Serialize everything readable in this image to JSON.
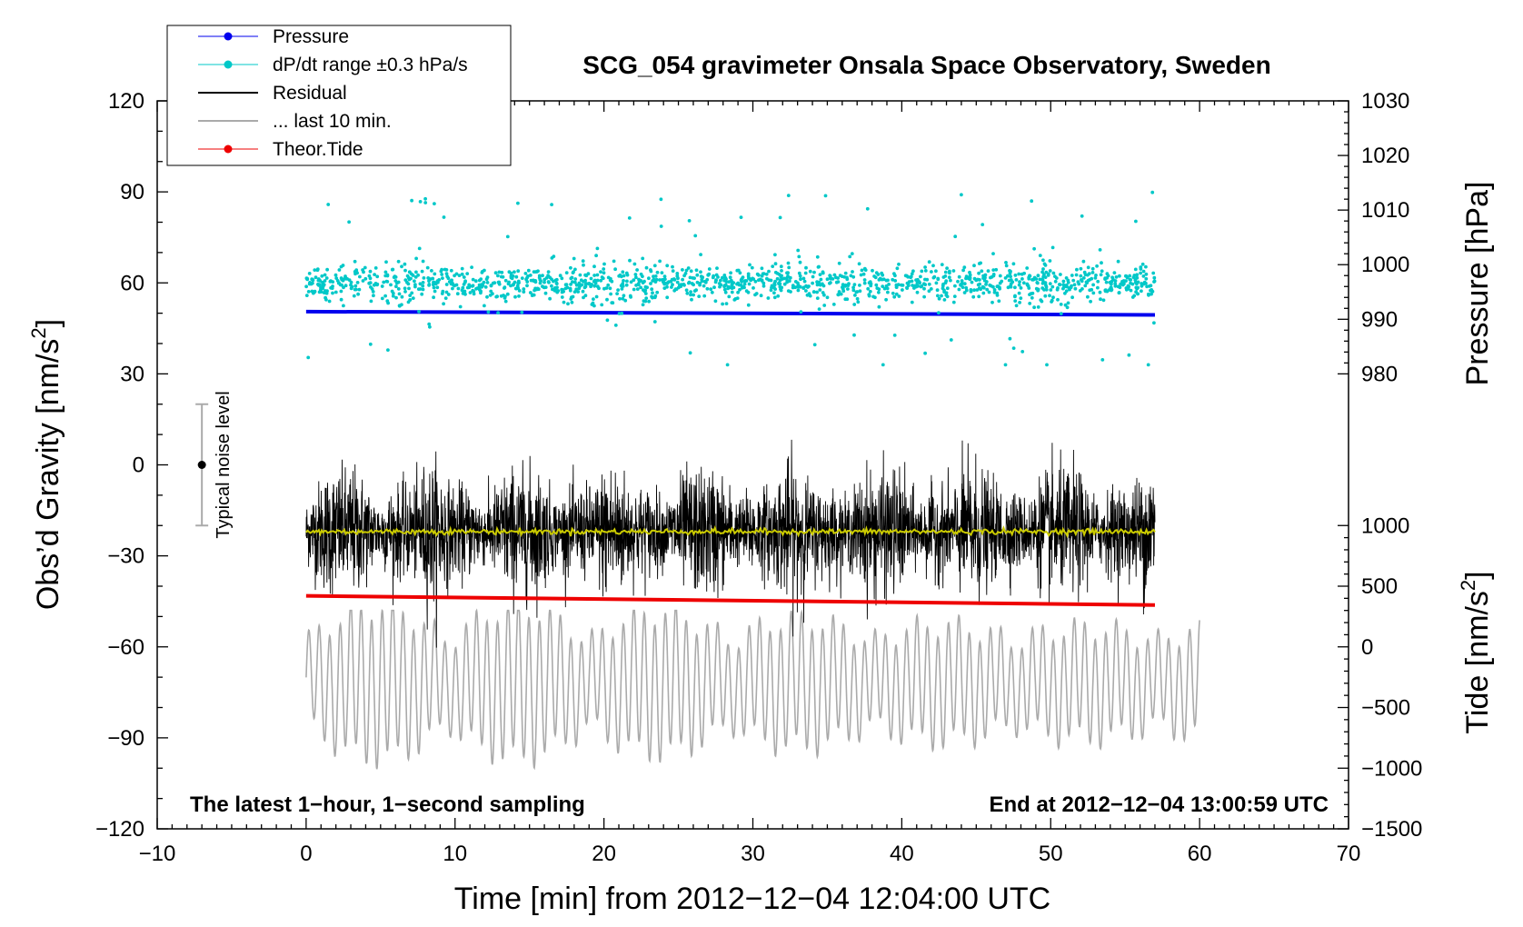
{
  "chart_data": {
    "type": "scatter",
    "title": "SCG_054 gravimeter Onsala Space Observatory, Sweden",
    "xlabel": "Time [min] from 2012−12−04 12:04:00 UTC",
    "ylabel_left": "Obs’d Gravity [nm/s",
    "ylabel_left_sup": "2",
    "ylabel_left_end": "]",
    "ylabel_right_top": "Pressure [hPa]",
    "ylabel_right_bottom": "Tide [nm/s",
    "ylabel_right_bottom_sup": "2",
    "ylabel_right_bottom_end": "]",
    "xlim": [
      -10,
      70
    ],
    "ylim_left": [
      -120,
      120
    ],
    "x_ticks": [
      "−10",
      "0",
      "10",
      "20",
      "30",
      "40",
      "50",
      "60",
      "70"
    ],
    "x_tick_values": [
      -10,
      0,
      10,
      20,
      30,
      40,
      50,
      60,
      70
    ],
    "y_left_ticks": [
      "120",
      "90",
      "60",
      "30",
      "0",
      "−30",
      "−60",
      "−90",
      "−120"
    ],
    "y_left_tick_values": [
      120,
      90,
      60,
      30,
      0,
      -30,
      -60,
      -90,
      -120
    ],
    "pressure_axis": {
      "range": [
        980,
        1030
      ],
      "ticks": [
        "1030",
        "1020",
        "1010",
        "1000",
        "990",
        "980"
      ],
      "tick_values": [
        1030,
        1020,
        1010,
        1000,
        990,
        980
      ]
    },
    "tide_axis": {
      "range": [
        -1500,
        1000
      ],
      "ticks": [
        "1000",
        "500",
        "0",
        "−500",
        "−1000",
        "−1500"
      ],
      "tick_values": [
        1000,
        500,
        0,
        -500,
        -1000,
        -1500
      ]
    },
    "legend": [
      {
        "label": "Pressure",
        "color": "#0000ee",
        "marker": true
      },
      {
        "label": "dP/dt range ±0.3 hPa/s",
        "color": "#00c8c8",
        "marker": true
      },
      {
        "label": "Residual",
        "color": "#000000",
        "marker": false
      },
      {
        "label": "... last 10 min.",
        "color": "#aaaaaa",
        "marker": false
      },
      {
        "label": "Theor.Tide",
        "color": "#ee0000",
        "marker": true
      }
    ],
    "annotations": {
      "bottom_left": "The latest 1−hour, 1−second sampling",
      "bottom_right": "End at 2012−12−04 13:00:59 UTC",
      "noise": "Typical noise level"
    },
    "noise_level": {
      "x": -7,
      "center": 0,
      "low": -20,
      "high": 20
    },
    "series": [
      {
        "name": "Pressure",
        "axis": "pressure",
        "color": "#0000ee",
        "x_range": [
          0,
          57
        ],
        "start": 991.4,
        "end": 990.8
      },
      {
        "name": "dP/dt range ±0.3 hPa/s",
        "axis": "left",
        "color": "#00c8c8",
        "x_range": [
          0,
          57
        ],
        "center": 60,
        "spread_typical": 3,
        "spread_max": 30
      },
      {
        "name": "Residual",
        "axis": "left",
        "color": "#000000",
        "x_range": [
          0,
          57
        ],
        "center": -22,
        "amplitude_typical": 15,
        "min": -62,
        "max": 18
      },
      {
        "name": "Residual smoothed",
        "axis": "left",
        "color": "#cccc00",
        "x_range": [
          0,
          57
        ],
        "center": -22
      },
      {
        "name": "... last 10 min.",
        "axis": "left",
        "color": "#aaaaaa",
        "x_range": [
          0,
          60
        ],
        "center": -72,
        "amplitude": 25,
        "min": -104,
        "max": -48
      },
      {
        "name": "Theor.Tide",
        "axis": "tide",
        "color": "#ee0000",
        "x_range": [
          0,
          57
        ],
        "start": 420,
        "end": 345
      }
    ]
  }
}
